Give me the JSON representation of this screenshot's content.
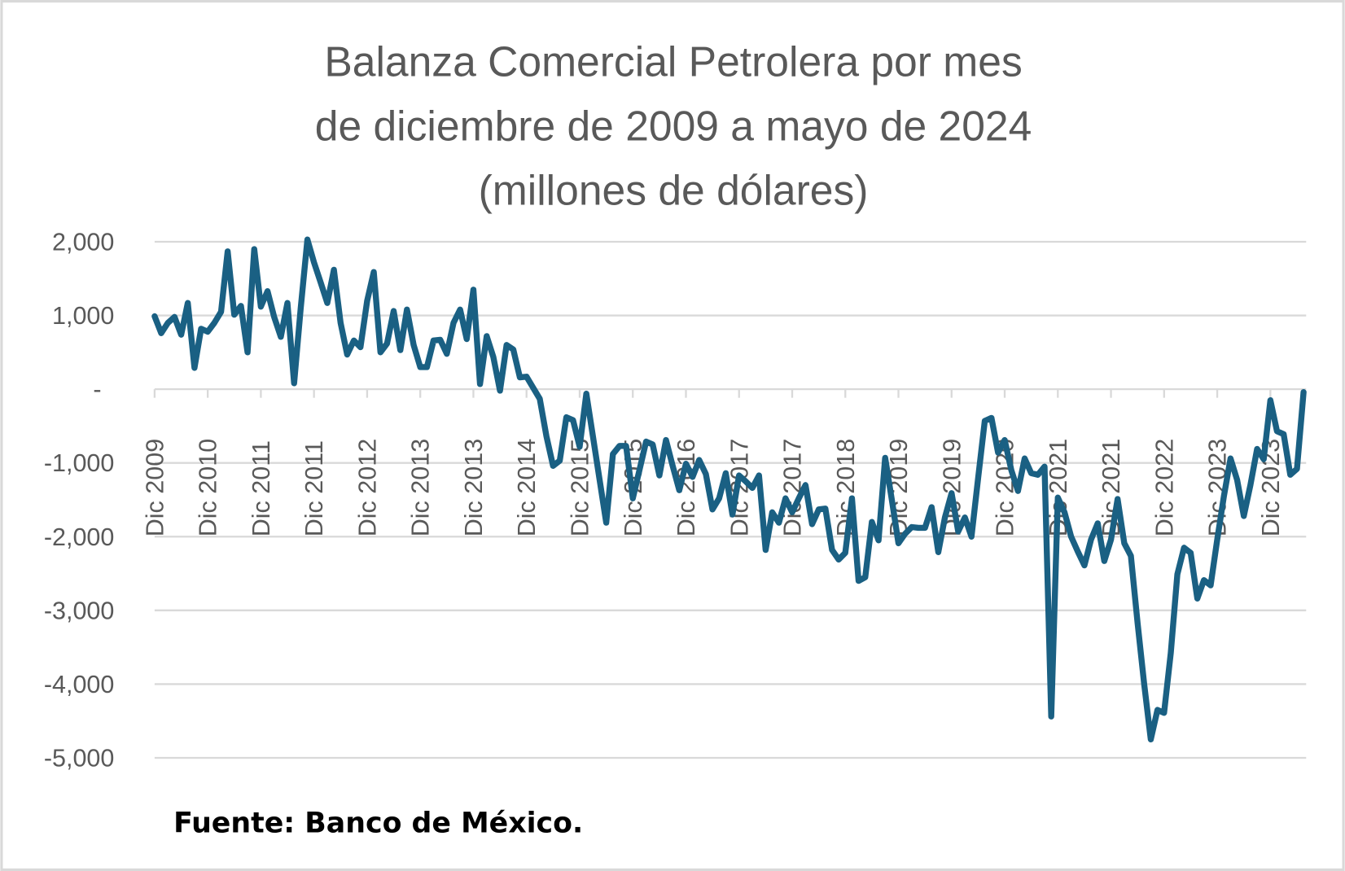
{
  "chart_data": {
    "type": "line",
    "title_lines": [
      "Balanza  Comercial Petrolera por mes",
      "de diciembre de 2009 a mayo de 2024",
      "(millones de dólares)"
    ],
    "source": "Fuente: Banco de México.",
    "xlabel": "",
    "ylabel": "",
    "ylim": [
      -5000,
      2000
    ],
    "y_ticks": [
      2000,
      1000,
      0,
      -1000,
      -2000,
      -3000,
      -4000,
      -5000
    ],
    "y_tick_labels": [
      "2,000",
      "1,000",
      "-",
      "-1,000",
      "-2,000",
      "-3,000",
      "-4,000",
      "-5,000"
    ],
    "x_tick_labels": [
      "Dic 2009",
      "Dic 2010",
      "Dic 2011",
      "Dic 2011",
      "Dic 2012",
      "Dic 2013",
      "Dic 2013",
      "Dic 2014",
      "Dic 2015",
      "Dic 2015",
      "Dic 2016",
      "Dic 2017",
      "Dic 2017",
      "Dic 2018",
      "Dic 2019",
      "Dic 2019",
      "Dic 2020",
      "Dic 2021",
      "Dic 2021",
      "Dic 2022",
      "Dic 2023",
      "Dic 2023"
    ],
    "grid": true,
    "legend": "none",
    "line_color": "#1a6083",
    "grid_color": "#d9d9d9",
    "values": [
      990,
      760,
      900,
      980,
      740,
      1170,
      290,
      820,
      780,
      900,
      1050,
      1870,
      1010,
      1130,
      500,
      1900,
      1120,
      1330,
      980,
      710,
      1170,
      80,
      1100,
      2030,
      1720,
      1450,
      1170,
      1620,
      900,
      470,
      660,
      570,
      1200,
      1590,
      500,
      620,
      1060,
      530,
      1080,
      600,
      300,
      300,
      660,
      670,
      480,
      900,
      1080,
      680,
      1350,
      70,
      720,
      440,
      -20,
      600,
      540,
      160,
      170,
      20,
      -130,
      -640,
      -1040,
      -970,
      -380,
      -420,
      -780,
      -60,
      -640,
      -1230,
      -1810,
      -880,
      -770,
      -770,
      -1480,
      -1100,
      -710,
      -750,
      -1170,
      -690,
      -1040,
      -1370,
      -1010,
      -1190,
      -960,
      -1150,
      -1630,
      -1480,
      -1140,
      -1700,
      -1170,
      -1250,
      -1340,
      -1170,
      -2180,
      -1670,
      -1810,
      -1480,
      -1670,
      -1480,
      -1300,
      -1830,
      -1630,
      -1620,
      -2180,
      -2310,
      -2220,
      -1480,
      -2600,
      -2550,
      -1800,
      -2050,
      -930,
      -1500,
      -2090,
      -1960,
      -1870,
      -1880,
      -1880,
      -1600,
      -2210,
      -1740,
      -1410,
      -1930,
      -1740,
      -2000,
      -1200,
      -430,
      -390,
      -860,
      -690,
      -1100,
      -1380,
      -940,
      -1140,
      -1160,
      -1050,
      -4440,
      -1470,
      -1670,
      -2000,
      -2200,
      -2390,
      -2040,
      -1820,
      -2330,
      -2040,
      -1490,
      -2090,
      -2260,
      -3170,
      -4000,
      -4750,
      -4350,
      -4390,
      -3580,
      -2510,
      -2150,
      -2220,
      -2840,
      -2590,
      -2660,
      -2040,
      -1450,
      -940,
      -1230,
      -1720,
      -1300,
      -810,
      -950,
      -150,
      -570,
      -610,
      -1160,
      -1080,
      -40
    ]
  }
}
